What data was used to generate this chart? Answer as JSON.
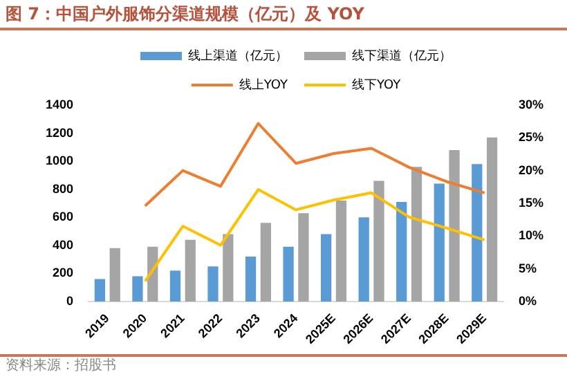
{
  "chart_data": {
    "type": "bar",
    "title": "图 7：中国户外服饰分渠道规模（亿元）及 YOY",
    "categories": [
      "2019",
      "2020",
      "2021",
      "2022",
      "2023",
      "2024",
      "2025E",
      "2026E",
      "2027E",
      "2028E",
      "2029E"
    ],
    "series": [
      {
        "name": "线上渠道（亿元）",
        "color": "#5b9bd5",
        "values": [
          160,
          180,
          220,
          250,
          320,
          390,
          480,
          600,
          710,
          840,
          980
        ]
      },
      {
        "name": "线下渠道（亿元）",
        "color": "#a5a5a5",
        "values": [
          380,
          390,
          440,
          480,
          560,
          630,
          720,
          860,
          960,
          1080,
          1170
        ]
      },
      {
        "name": "线上YOY",
        "type": "line",
        "axis": "y2",
        "color": "#ed7d31",
        "values": [
          null,
          14.6,
          20.0,
          17.6,
          27.2,
          21.1,
          22.6,
          23.4,
          20.5,
          18.3,
          16.6
        ]
      },
      {
        "name": "线下YOY",
        "type": "line",
        "axis": "y2",
        "color": "#ffc000",
        "values": [
          null,
          3.1,
          11.5,
          8.6,
          17.1,
          14.0,
          15.5,
          16.6,
          12.9,
          11.2,
          9.4
        ]
      }
    ],
    "ylim": [
      0,
      1400
    ],
    "yticks": [
      0,
      200,
      400,
      600,
      800,
      1000,
      1200,
      1400
    ],
    "y2lim": [
      0,
      30
    ],
    "y2ticks": [
      {
        "value": 0,
        "label": "0%"
      },
      {
        "value": 5,
        "label": "5%"
      },
      {
        "value": 10,
        "label": "10%"
      },
      {
        "value": 15,
        "label": "15%"
      },
      {
        "value": 20,
        "label": "20%"
      },
      {
        "value": 25,
        "label": "25%"
      },
      {
        "value": 30,
        "label": "30%"
      }
    ],
    "grid": false,
    "legend": "top",
    "marker": "none",
    "line_style": "solid",
    "annotations": [
      "资料来源：招股书"
    ]
  }
}
